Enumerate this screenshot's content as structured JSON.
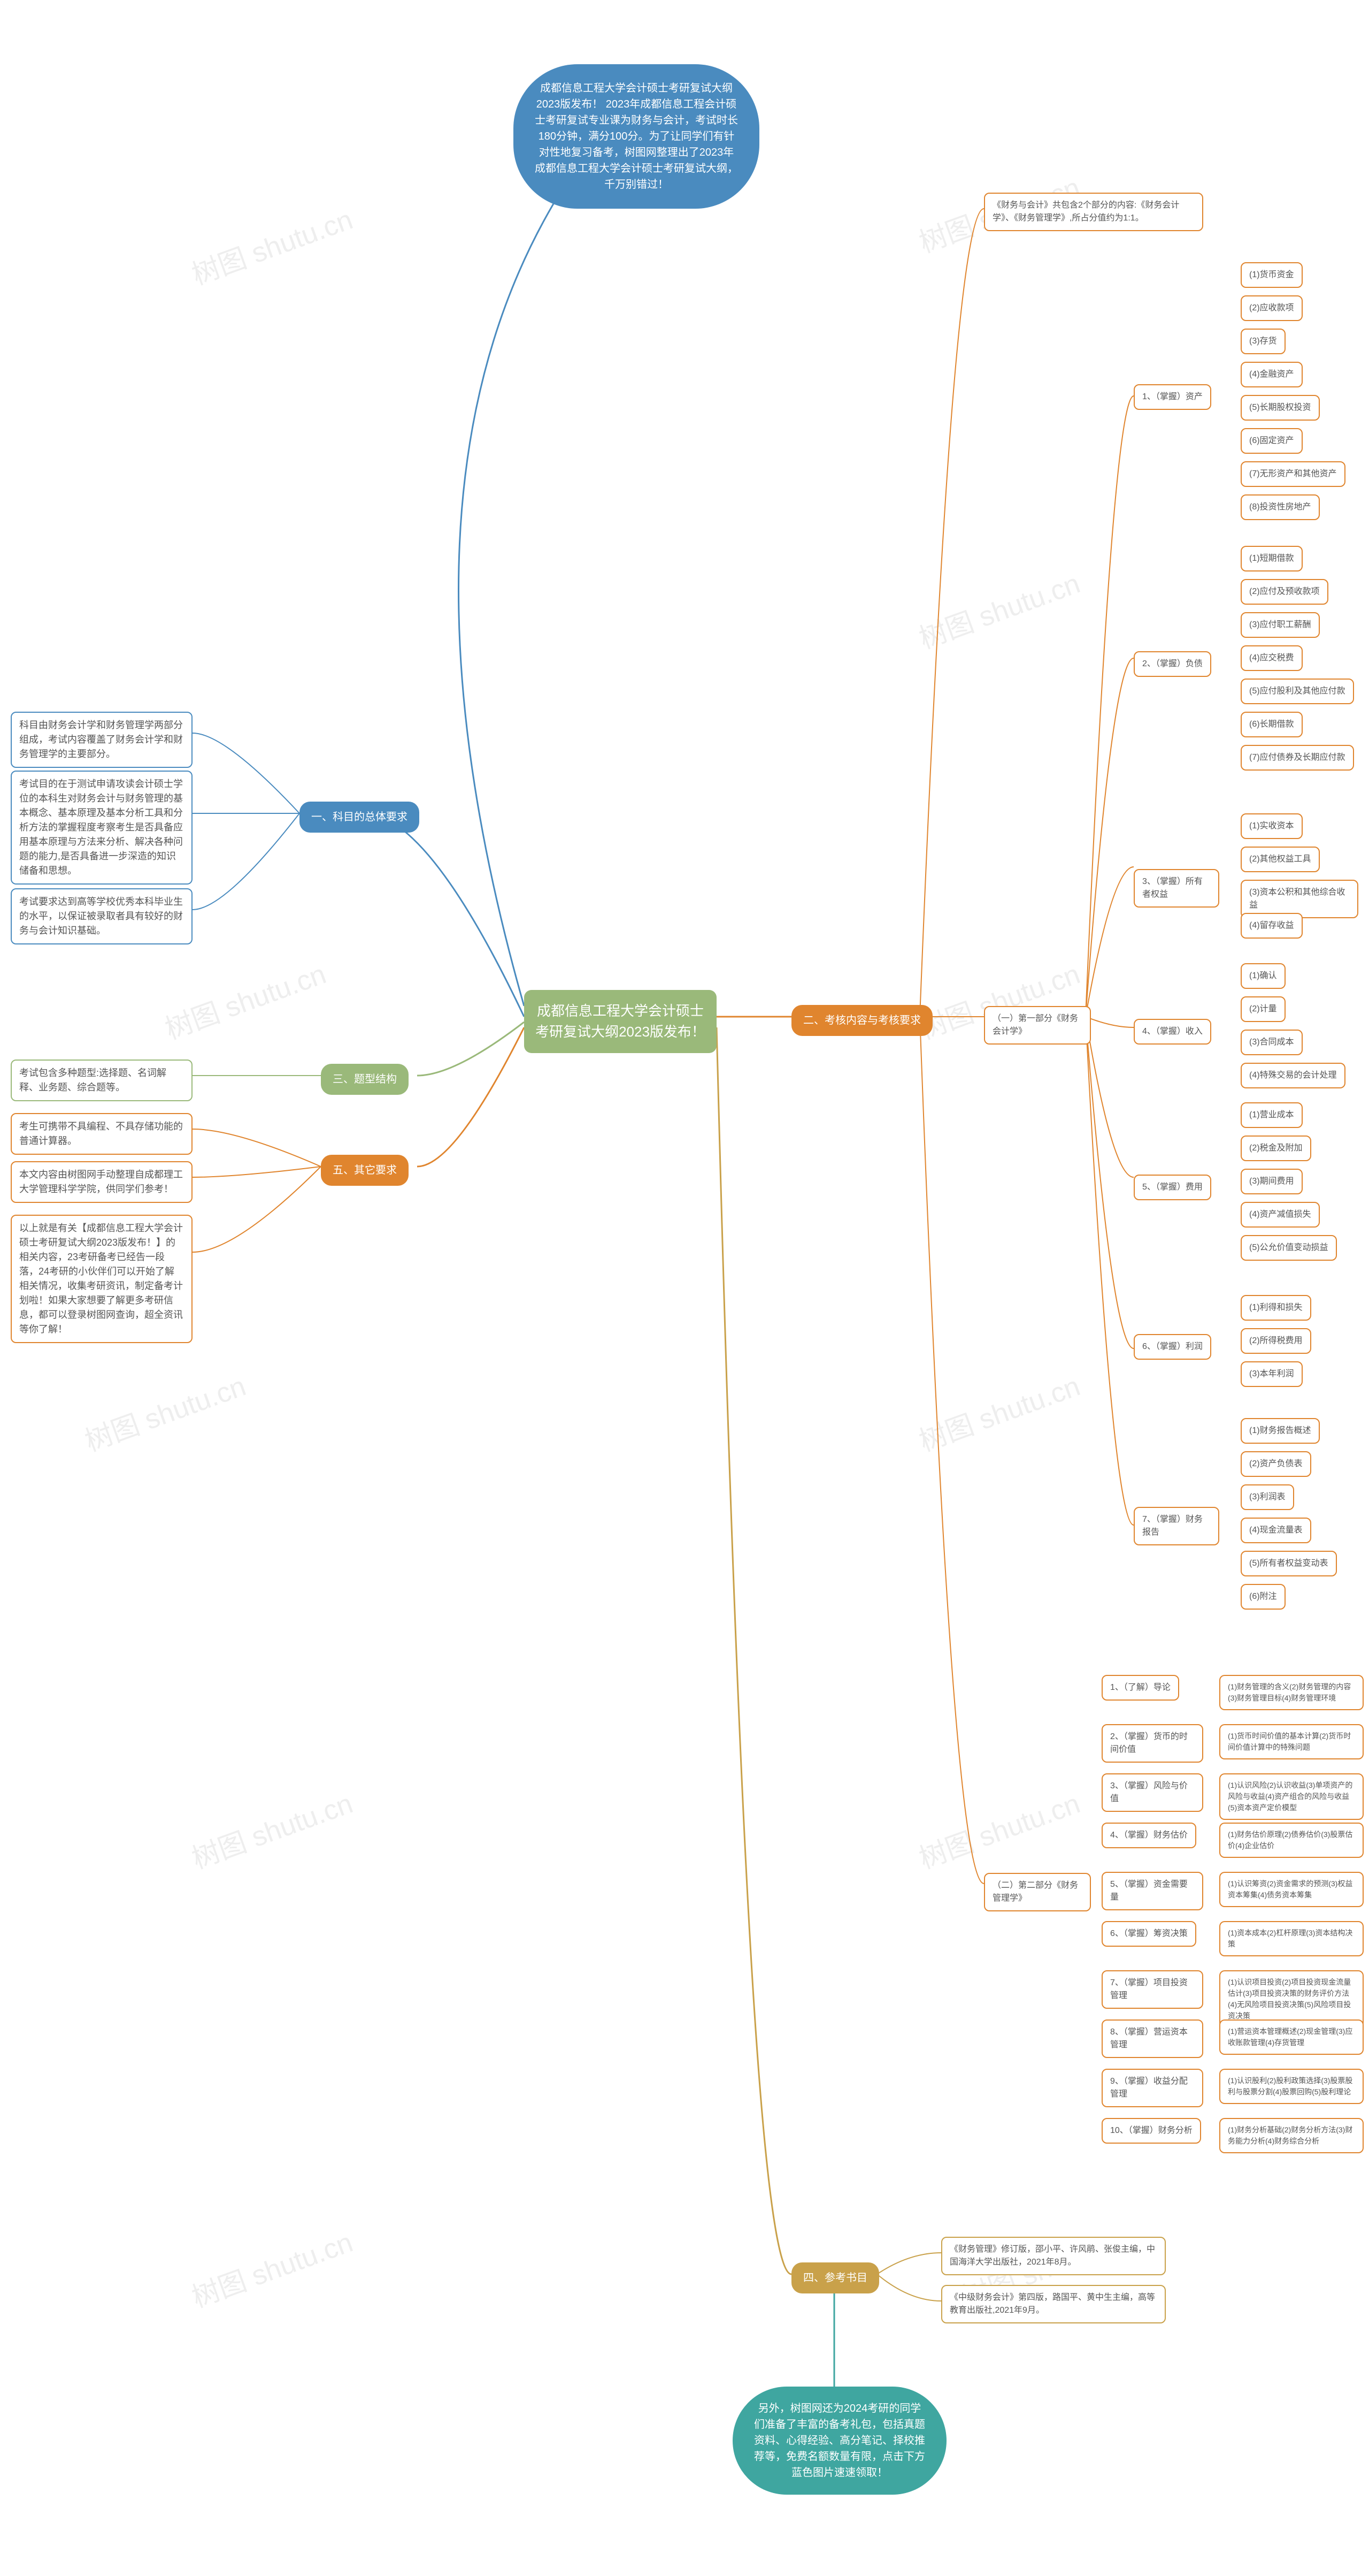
{
  "colors": {
    "background": "#ffffff",
    "watermark": "#eeeeee",
    "center": "#9ab97a",
    "blue": "#4a8bbf",
    "teal": "#3fa6a0",
    "orange": "#e0852e",
    "green": "#9ab97a",
    "ochre": "#c9a14a",
    "text_dark": "#555555",
    "line_gray": "#aaaaaa"
  },
  "watermark_text": "树图 shutu.cn",
  "center": "成都信息工程大学会计硕士考研复试大纲2023版发布！",
  "top_bubble": "成都信息工程大学会计硕士考研复试大纲2023版发布！  2023年成都信息工程会计硕士考研复试专业课为财务与会计，考试时长180分钟，满分100分。为了让同学们有针对性地复习备考，树图网整理出了2023年成都信息工程大学会计硕士考研复试大纲，千万别错过！",
  "bottom_bubble": "另外，树图网还为2024考研的同学们准备了丰富的备考礼包，包括真题资料、心得经验、高分笔记、择校推荐等，免费名额数量有限，点击下方蓝色图片速速领取！",
  "branch1": {
    "title": "一、科目的总体要求",
    "items": [
      "科目由财务会计学和财务管理学两部分组成，考试内容覆盖了财务会计学和财务管理学的主要部分。",
      "考试目的在于测试申请攻读会计硕士学位的本科生对财务会计与财务管理的基本概念、基本原理及基本分析工具和分析方法的掌握程度考察考生是否具备应用基本原理与方法来分析、解决各种问题的能力,是否具备进一步深造的知识储备和思想。",
      "考试要求达到高等学校优秀本科毕业生的水平，以保证被录取者具有较好的财务与会计知识基础。"
    ]
  },
  "branch2": {
    "title": "二、考核内容与考核要求",
    "intro": "《财务与会计》共包含2个部分的内容:《财务会计学》、《财务管理学》,所占分值约为1:1。",
    "part1": {
      "title": "（一）第一部分《财务会计学》",
      "sections": [
        {
          "label": "1、（掌握）资产",
          "items": [
            "(1)货币资金",
            "(2)应收款项",
            "(3)存货",
            "(4)金融资产",
            "(5)长期股权投资",
            "(6)固定资产",
            "(7)无形资产和其他资产",
            "(8)投资性房地产"
          ]
        },
        {
          "label": "2、（掌握）负债",
          "items": [
            "(1)短期借款",
            "(2)应付及预收款项",
            "(3)应付职工薪酬",
            "(4)应交税费",
            "(5)应付股利及其他应付款",
            "(6)长期借款",
            "(7)应付债券及长期应付款"
          ]
        },
        {
          "label": "3、（掌握）所有者权益",
          "items": [
            "(1)实收资本",
            "(2)其他权益工具",
            "(3)资本公积和其他综合收益",
            "(4)留存收益"
          ]
        },
        {
          "label": "4、（掌握）收入",
          "items": [
            "(1)确认",
            "(2)计量",
            "(3)合同成本",
            "(4)特殊交易的会计处理"
          ]
        },
        {
          "label": "5、（掌握）费用",
          "items": [
            "(1)营业成本",
            "(2)税金及附加",
            "(3)期间费用",
            "(4)资产减值损失",
            "(5)公允价值变动损益"
          ]
        },
        {
          "label": "6、（掌握）利润",
          "items": [
            "(1)利得和损失",
            "(2)所得税费用",
            "(3)本年利润"
          ]
        },
        {
          "label": "7、（掌握）财务报告",
          "items": [
            "(1)财务报告概述",
            "(2)资产负债表",
            "(3)利润表",
            "(4)现金流量表",
            "(5)所有者权益变动表",
            "(6)附注"
          ]
        }
      ]
    },
    "part2": {
      "title": "（二）第二部分《财务管理学》",
      "sections": [
        {
          "label": "1、（了解）导论",
          "detail": "(1)财务管理的含义(2)财务管理的内容(3)财务管理目标(4)财务管理环境"
        },
        {
          "label": "2、（掌握）货币的时间价值",
          "detail": "(1)货币时间价值的基本计算(2)货币时间价值计算中的特殊问题"
        },
        {
          "label": "3、（掌握）风险与价值",
          "detail": "(1)认识风险(2)认识收益(3)单项资产的风险与收益(4)资产组合的风险与收益(5)资本资产定价模型"
        },
        {
          "label": "4、（掌握）财务估价",
          "detail": "(1)财务估价原理(2)债券估价(3)股票估价(4)企业估价"
        },
        {
          "label": "5、（掌握）资金需要量",
          "detail": "(1)认识筹资(2)资金需求的预测(3)权益资本筹集(4)债务资本筹集"
        },
        {
          "label": "6、（掌握）筹资决策",
          "detail": "(1)资本成本(2)杠杆原理(3)资本结构决策"
        },
        {
          "label": "7、（掌握）项目投资管理",
          "detail": "(1)认识项目投资(2)项目投资现金流量估计(3)项目投资决策的财务评价方法(4)无风险项目投资决策(5)风险项目投资决策"
        },
        {
          "label": "8、（掌握）营运资本管理",
          "detail": "(1)营运资本管理概述(2)现金管理(3)应收账款管理(4)存货管理"
        },
        {
          "label": "9、（掌握）收益分配管理",
          "detail": "(1)认识股利(2)股利政策选择(3)股票股利与股票分割(4)股票回购(5)股利理论"
        },
        {
          "label": "10、（掌握）财务分析",
          "detail": "(1)财务分析基础(2)财务分析方法(3)财务能力分析(4)财务综合分析"
        }
      ]
    }
  },
  "branch3": {
    "title": "三、题型结构",
    "item": "考试包含多种题型:选择题、名词解释、业务题、综合题等。"
  },
  "branch4": {
    "title": "四、参考书目",
    "items": [
      "《财务管理》修订版，邵小平、许风鹃、张俊主编，中国海洋大学出版社，2021年8月。",
      "《中级财务会计》第四版，路国平、黄中生主编，高等教育出版社,2021年9月。"
    ]
  },
  "branch5": {
    "title": "五、其它要求",
    "items": [
      "考生可携带不具编程、不具存储功能的普通计算器。",
      "本文内容由树图网手动整理自成都理工大学管理科学学院，供同学们参考！",
      "以上就是有关【成都信息工程大学会计硕士考研复试大纲2023版发布！】的相关内容，23考研备考已经告一段落，24考研的小伙伴们可以开始了解相关情况，收集考研资讯，制定备考计划啦！如果大家想要了解更多考研信息，都可以登录树图网查询，超全资讯等你了解！"
    ]
  }
}
